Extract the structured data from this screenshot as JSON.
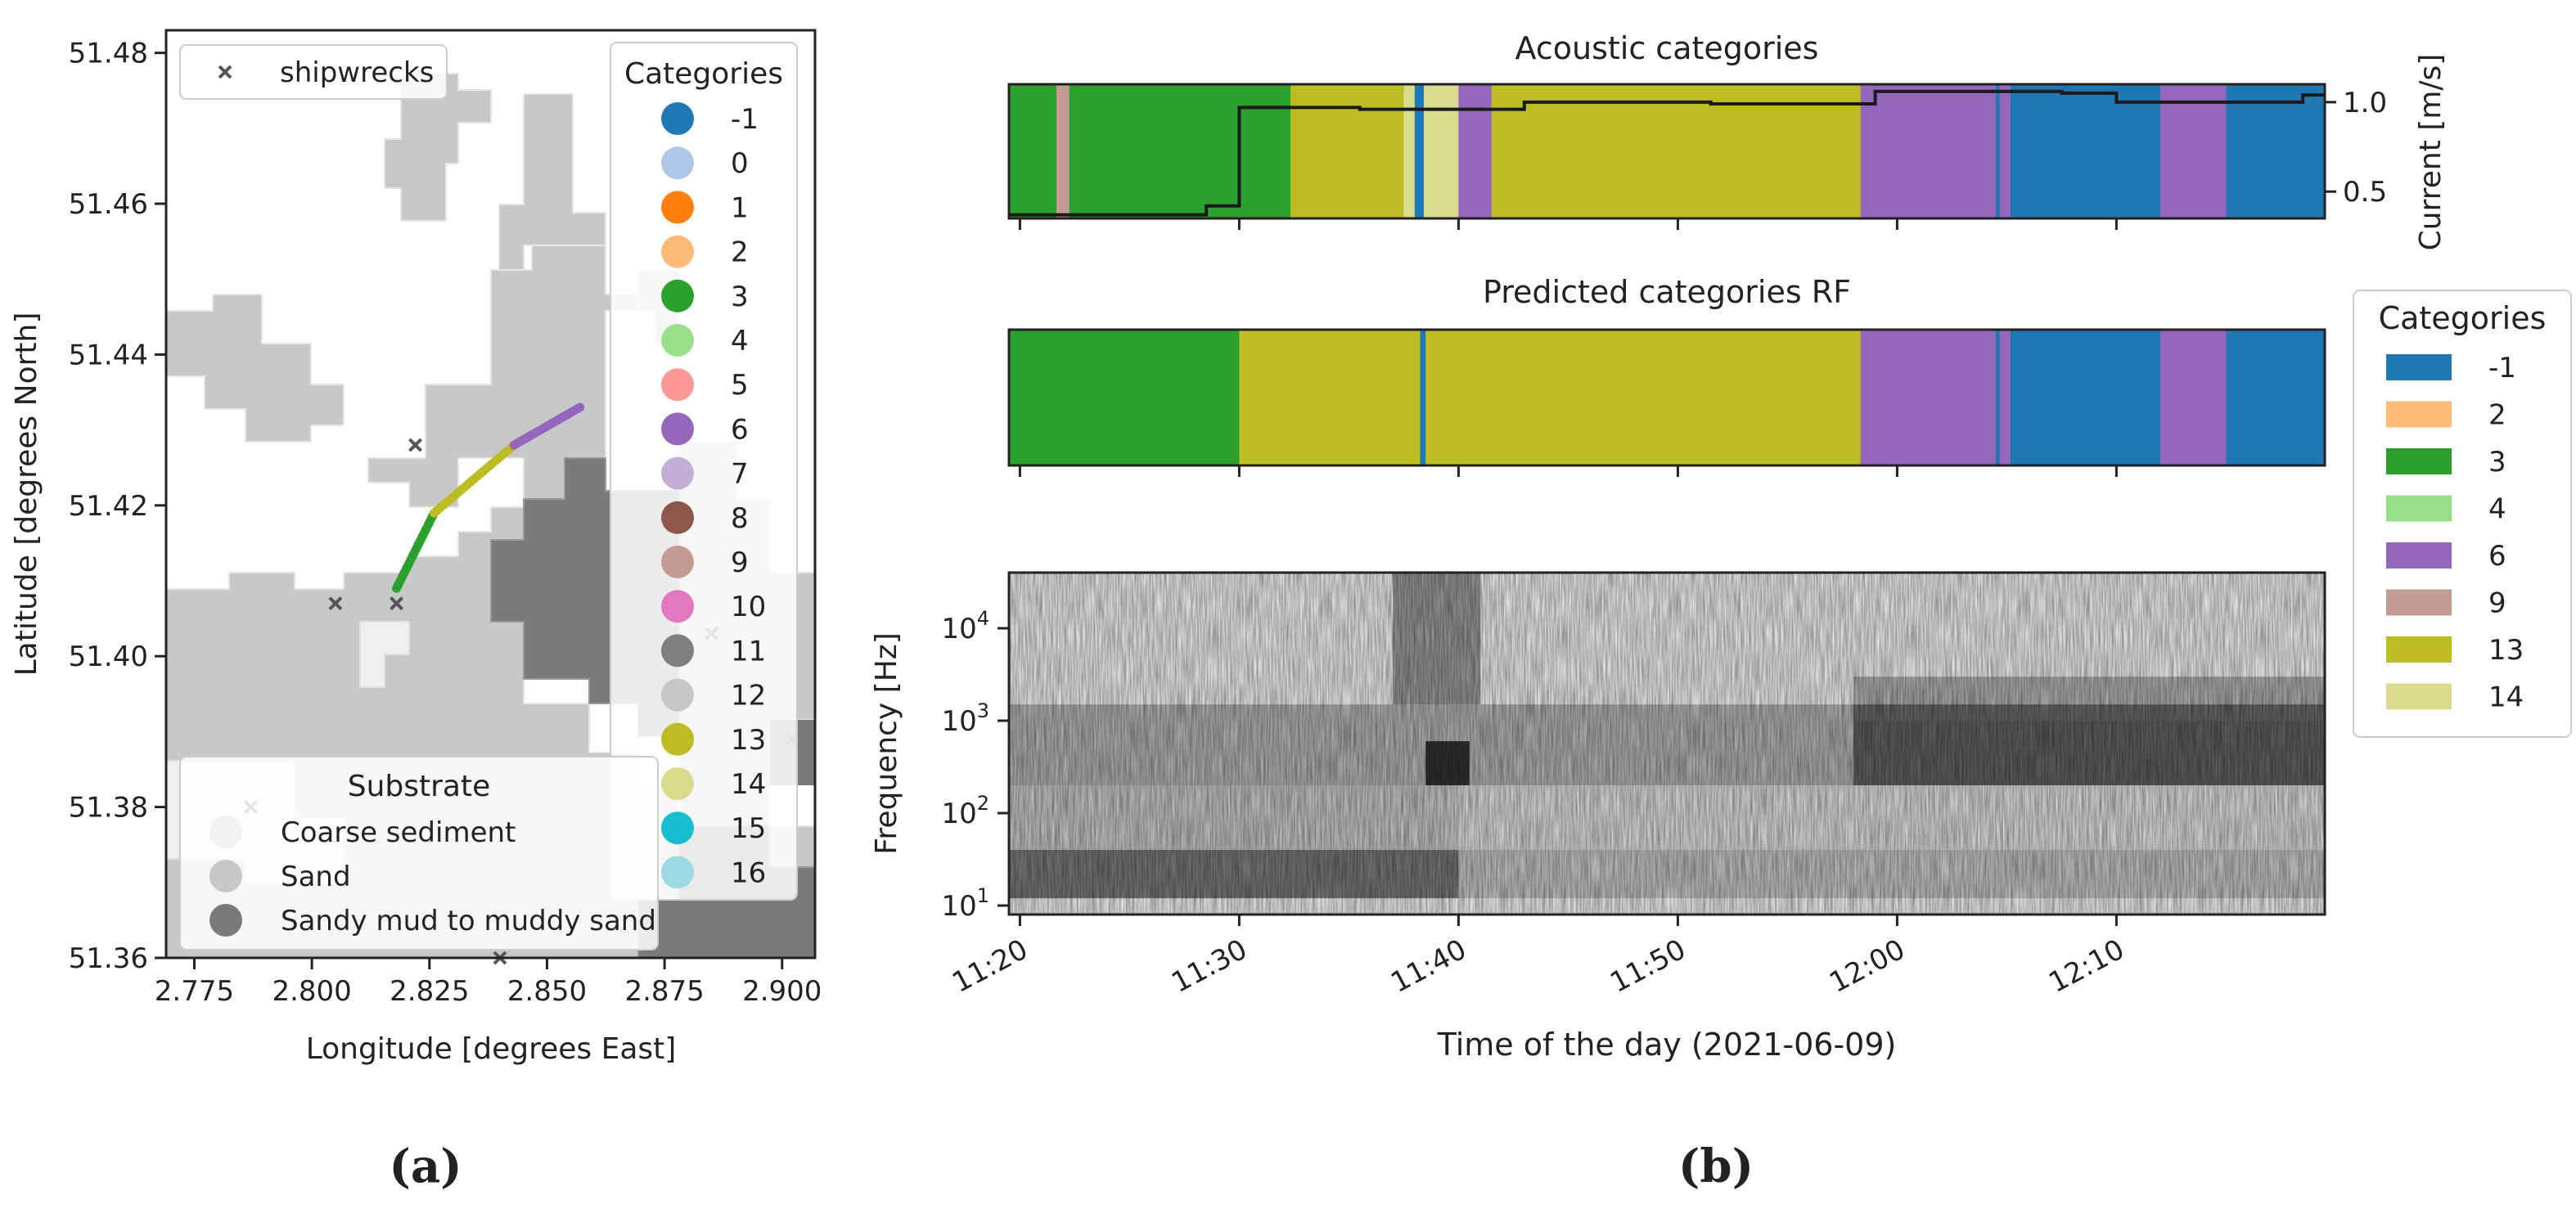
{
  "panel_a": {
    "label": "(a)",
    "xlabel": "Longitude [degrees East]",
    "ylabel": "Latitude [degrees North]",
    "xticks": [
      "2.775",
      "2.800",
      "2.825",
      "2.850",
      "2.875",
      "2.900"
    ],
    "yticks": [
      "51.48",
      "51.46",
      "51.44",
      "51.42",
      "51.40",
      "51.38",
      "51.36"
    ],
    "legend_shipwrecks": "shipwrecks",
    "legend_categories_title": "Categories",
    "categories": [
      {
        "label": "-1",
        "color": "#1f77b4"
      },
      {
        "label": "0",
        "color": "#aec7e8"
      },
      {
        "label": "1",
        "color": "#ff7f0e"
      },
      {
        "label": "2",
        "color": "#ffbb78"
      },
      {
        "label": "3",
        "color": "#2ca02c"
      },
      {
        "label": "4",
        "color": "#98df8a"
      },
      {
        "label": "5",
        "color": "#ff9896"
      },
      {
        "label": "6",
        "color": "#9467bd"
      },
      {
        "label": "7",
        "color": "#c5b0d5"
      },
      {
        "label": "8",
        "color": "#8c564b"
      },
      {
        "label": "9",
        "color": "#c49c94"
      },
      {
        "label": "10",
        "color": "#e377c2"
      },
      {
        "label": "11",
        "color": "#7f7f7f"
      },
      {
        "label": "12",
        "color": "#c7c7c7"
      },
      {
        "label": "13",
        "color": "#bcbd22"
      },
      {
        "label": "14",
        "color": "#dbdb8d"
      },
      {
        "label": "15",
        "color": "#17becf"
      },
      {
        "label": "16",
        "color": "#9edae5"
      }
    ],
    "substrate_title": "Substrate",
    "substrate": [
      {
        "label": "Coarse sediment",
        "color": "#f2f2f2"
      },
      {
        "label": "Sand",
        "color": "#c8c8c8"
      },
      {
        "label": "Sandy mud to muddy sand",
        "color": "#7a7a7a"
      }
    ]
  },
  "panel_b": {
    "label": "(b)",
    "title_top": "Acoustic categories",
    "title_mid": "Predicted categories RF",
    "ylabel_right": "Current [m/s]",
    "right_yticks": [
      "1.0",
      "0.5"
    ],
    "ylabel_spec": "Frequency [Hz]",
    "xlabel": "Time of the day (2021-06-09)",
    "xticks": [
      "11:20",
      "11:30",
      "11:40",
      "11:50",
      "12:00",
      "12:10"
    ],
    "legend_title": "Categories",
    "legend": [
      {
        "label": "-1",
        "color": "#1f77b4"
      },
      {
        "label": "2",
        "color": "#ffbb78"
      },
      {
        "label": "3",
        "color": "#2ca02c"
      },
      {
        "label": "4",
        "color": "#98df8a"
      },
      {
        "label": "6",
        "color": "#9467bd"
      },
      {
        "label": "9",
        "color": "#c49c94"
      },
      {
        "label": "13",
        "color": "#bcbd22"
      },
      {
        "label": "14",
        "color": "#dbdb8d"
      }
    ]
  },
  "chart_data": [
    {
      "type": "scatter",
      "panel": "a",
      "xlabel": "Longitude [degrees East]",
      "ylabel": "Latitude [degrees North]",
      "xlim": [
        2.769,
        2.907
      ],
      "ylim": [
        51.36,
        51.483
      ],
      "shipwrecks": [
        [
          2.822,
          51.428
        ],
        [
          2.805,
          51.407
        ],
        [
          2.818,
          51.407
        ],
        [
          2.787,
          51.38
        ],
        [
          2.84,
          51.36
        ],
        [
          2.885,
          51.403
        ],
        [
          2.902,
          51.389
        ]
      ],
      "track": [
        {
          "from": [
            2.818,
            51.409
          ],
          "to": [
            2.826,
            51.419
          ],
          "category": "3"
        },
        {
          "from": [
            2.826,
            51.419
          ],
          "to": [
            2.843,
            51.428
          ],
          "category": "13"
        },
        {
          "from": [
            2.843,
            51.428
          ],
          "to": [
            2.857,
            51.433
          ],
          "category": "6"
        }
      ]
    },
    {
      "type": "bar",
      "panel": "b-top",
      "title": "Acoustic categories",
      "x_range": [
        "11:19:30",
        "12:19:30"
      ],
      "segments": [
        {
          "start": "11:19:30",
          "end": "11:21:40",
          "category": "3"
        },
        {
          "start": "11:21:40",
          "end": "11:22:15",
          "category": "9"
        },
        {
          "start": "11:22:15",
          "end": "11:32:20",
          "category": "3"
        },
        {
          "start": "11:32:20",
          "end": "11:37:30",
          "category": "13"
        },
        {
          "start": "11:37:30",
          "end": "11:38:00",
          "category": "14"
        },
        {
          "start": "11:38:00",
          "end": "11:38:25",
          "category": "-1"
        },
        {
          "start": "11:38:25",
          "end": "11:40:00",
          "category": "14"
        },
        {
          "start": "11:40:00",
          "end": "11:41:30",
          "category": "6"
        },
        {
          "start": "11:41:30",
          "end": "11:58:20",
          "category": "13"
        },
        {
          "start": "11:58:20",
          "end": "12:04:30",
          "category": "6"
        },
        {
          "start": "12:04:30",
          "end": "12:04:40",
          "category": "-1"
        },
        {
          "start": "12:04:40",
          "end": "12:05:10",
          "category": "6"
        },
        {
          "start": "12:05:10",
          "end": "12:12:00",
          "category": "-1"
        },
        {
          "start": "12:12:00",
          "end": "12:15:00",
          "category": "6"
        },
        {
          "start": "12:15:00",
          "end": "12:19:30",
          "category": "-1"
        }
      ],
      "current_series": {
        "name": "Current [m/s]",
        "ylim": [
          0.35,
          1.1
        ],
        "steps": [
          {
            "time": "11:19:30",
            "value": 0.37
          },
          {
            "time": "11:28:30",
            "value": 0.42
          },
          {
            "time": "11:30:00",
            "value": 0.97
          },
          {
            "time": "11:35:30",
            "value": 0.96
          },
          {
            "time": "11:43:00",
            "value": 1.0
          },
          {
            "time": "11:51:30",
            "value": 0.99
          },
          {
            "time": "11:59:00",
            "value": 1.06
          },
          {
            "time": "12:07:30",
            "value": 1.05
          },
          {
            "time": "12:10:00",
            "value": 1.0
          },
          {
            "time": "12:18:30",
            "value": 1.04
          }
        ]
      }
    },
    {
      "type": "bar",
      "panel": "b-mid",
      "title": "Predicted categories RF",
      "x_range": [
        "11:19:30",
        "12:19:30"
      ],
      "segments": [
        {
          "start": "11:19:30",
          "end": "11:30:00",
          "category": "3"
        },
        {
          "start": "11:30:00",
          "end": "11:38:15",
          "category": "13"
        },
        {
          "start": "11:38:15",
          "end": "11:38:30",
          "category": "-1"
        },
        {
          "start": "11:38:30",
          "end": "11:58:20",
          "category": "13"
        },
        {
          "start": "11:58:20",
          "end": "12:04:30",
          "category": "6"
        },
        {
          "start": "12:04:30",
          "end": "12:04:40",
          "category": "-1"
        },
        {
          "start": "12:04:40",
          "end": "12:05:10",
          "category": "6"
        },
        {
          "start": "12:05:10",
          "end": "12:12:00",
          "category": "-1"
        },
        {
          "start": "12:12:00",
          "end": "12:15:00",
          "category": "6"
        },
        {
          "start": "12:15:00",
          "end": "12:19:30",
          "category": "-1"
        }
      ]
    },
    {
      "type": "heatmap",
      "panel": "b-bottom",
      "ylabel": "Frequency [Hz]",
      "xlabel": "Time of the day (2021-06-09)",
      "yscale": "log",
      "ylim": [
        8,
        40000
      ],
      "yticks": [
        10,
        100,
        1000,
        10000
      ],
      "x_range": [
        "11:19:30",
        "12:19:30"
      ]
    }
  ]
}
